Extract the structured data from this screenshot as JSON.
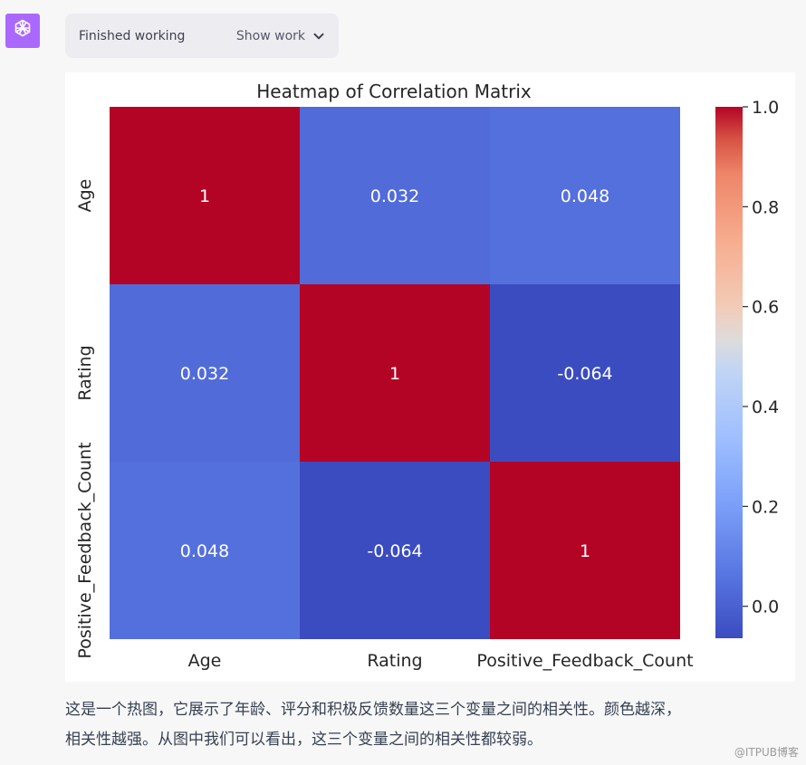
{
  "status": {
    "finished_label": "Finished working",
    "show_work_label": "Show work"
  },
  "icons": {
    "avatar": "openai-logo-icon",
    "toggle": "chevron-down-icon"
  },
  "colors": {
    "avatar_bg": "#ab68ff",
    "pill_bg": "#ececf1",
    "heat_high": "#b40426",
    "heat_low": "#3b4cc0"
  },
  "chart_data": {
    "type": "heatmap",
    "title": "Heatmap of Correlation Matrix",
    "colormap": "coolwarm",
    "x_labels": [
      "Age",
      "Rating",
      "Positive_Feedback_Count"
    ],
    "y_labels": [
      "Age",
      "Rating",
      "Positive_Feedback_Count"
    ],
    "values": [
      [
        1,
        0.032,
        0.048
      ],
      [
        0.032,
        1,
        -0.064
      ],
      [
        0.048,
        -0.064,
        1
      ]
    ],
    "annotations": [
      [
        "1",
        "0.032",
        "0.048"
      ],
      [
        "0.032",
        "1",
        "-0.064"
      ],
      [
        "0.048",
        "-0.064",
        "1"
      ]
    ],
    "colorbar": {
      "range": [
        -0.064,
        1.0
      ],
      "ticks": [
        "0.0",
        "0.2",
        "0.4",
        "0.6",
        "0.8",
        "1.0"
      ]
    }
  },
  "message": {
    "line1": "这是一个热图，它展示了年龄、评分和积极反馈数量这三个变量之间的相关性。颜色越深，",
    "line2": "相关性越强。从图中我们可以看出，这三个变量之间的相关性都较弱。"
  },
  "watermark": "@ITPUB博客"
}
